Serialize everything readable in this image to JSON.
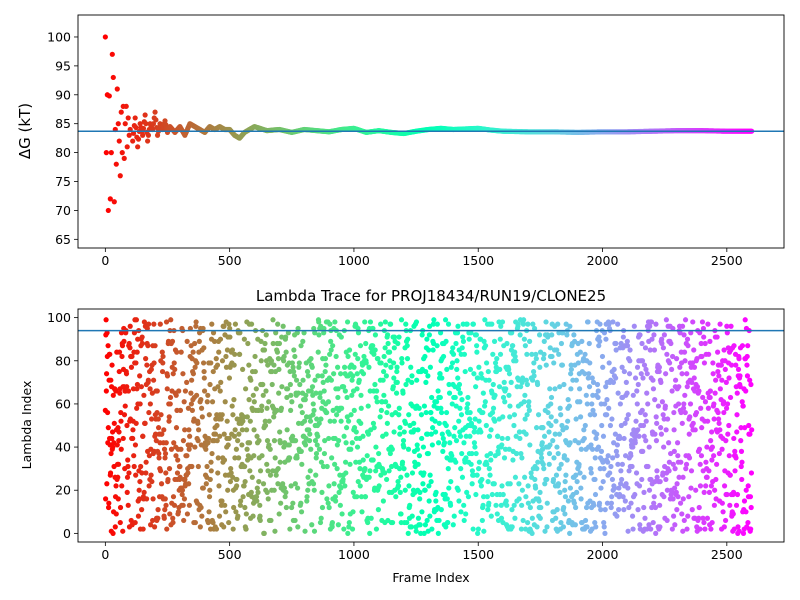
{
  "chart_data": [
    {
      "type": "scatter",
      "title": "",
      "xlabel": "",
      "ylabel": "ΔG (kT)",
      "xlim": [
        -110,
        2730
      ],
      "ylim": [
        63.5,
        103.8
      ],
      "xticks": [
        0,
        500,
        1000,
        1500,
        2000,
        2500
      ],
      "yticks": [
        65,
        70,
        75,
        80,
        85,
        90,
        95,
        100
      ],
      "colormap": "rainbow",
      "hline": 83.7,
      "hline_color": "#1f77b4",
      "series": [
        {
          "x": [
            0,
            4,
            8,
            12,
            16,
            20,
            24,
            28,
            32,
            36,
            40,
            44,
            48,
            52,
            56,
            60,
            64,
            68,
            72,
            76,
            80,
            84,
            88,
            92,
            96,
            100,
            110,
            120,
            130,
            140,
            150,
            160,
            170,
            180,
            190,
            200,
            210,
            220,
            230,
            240,
            250,
            260,
            280,
            300,
            320,
            340,
            360,
            380,
            400,
            420,
            440,
            460,
            480,
            500,
            520,
            540,
            560,
            580,
            600,
            650,
            700,
            750,
            800,
            850,
            900,
            950,
            1000,
            1050,
            1100,
            1150,
            1200,
            1250,
            1300,
            1350,
            1400,
            1450,
            1500,
            1550,
            1600,
            1700,
            1800,
            1900,
            2000,
            2100,
            2200,
            2300,
            2400,
            2500,
            2600
          ],
          "y": [
            100,
            80,
            90,
            70,
            89.8,
            72,
            80,
            97,
            93,
            71.5,
            84,
            78,
            91,
            85,
            82,
            76,
            87,
            80,
            88,
            79,
            85,
            88,
            81,
            86,
            83,
            84,
            82,
            86,
            81,
            85,
            83,
            86.5,
            82,
            85,
            84,
            87,
            83,
            85,
            84,
            85.5,
            83.5,
            84.5,
            83.5,
            84.5,
            83,
            85,
            84.5,
            84,
            83.5,
            84.5,
            84,
            84.5,
            84,
            84,
            83,
            82.5,
            83.5,
            84,
            84.5,
            83.8,
            84,
            83.5,
            84,
            83.8,
            83.6,
            84,
            84.2,
            83.5,
            83.8,
            83.5,
            83.3,
            83.7,
            84,
            84.2,
            84,
            84.1,
            84.2,
            83.9,
            83.7,
            83.6,
            83.6,
            83.5,
            83.6,
            83.6,
            83.7,
            83.8,
            83.8,
            83.7,
            83.7
          ]
        }
      ]
    },
    {
      "type": "scatter",
      "title": "Lambda Trace for PROJ18434/RUN19/CLONE25",
      "xlabel": "Frame Index",
      "ylabel": "Lambda Index",
      "xlim": [
        -110,
        2730
      ],
      "ylim": [
        -4,
        104
      ],
      "xticks": [
        0,
        500,
        1000,
        1500,
        2000,
        2500
      ],
      "yticks": [
        0,
        20,
        40,
        60,
        80,
        100
      ],
      "colormap": "rainbow",
      "hline": 94,
      "hline_color": "#1f77b4",
      "x_range": [
        0,
        2600
      ],
      "y_range": [
        0,
        99
      ],
      "approx_point_count": 2600
    }
  ]
}
